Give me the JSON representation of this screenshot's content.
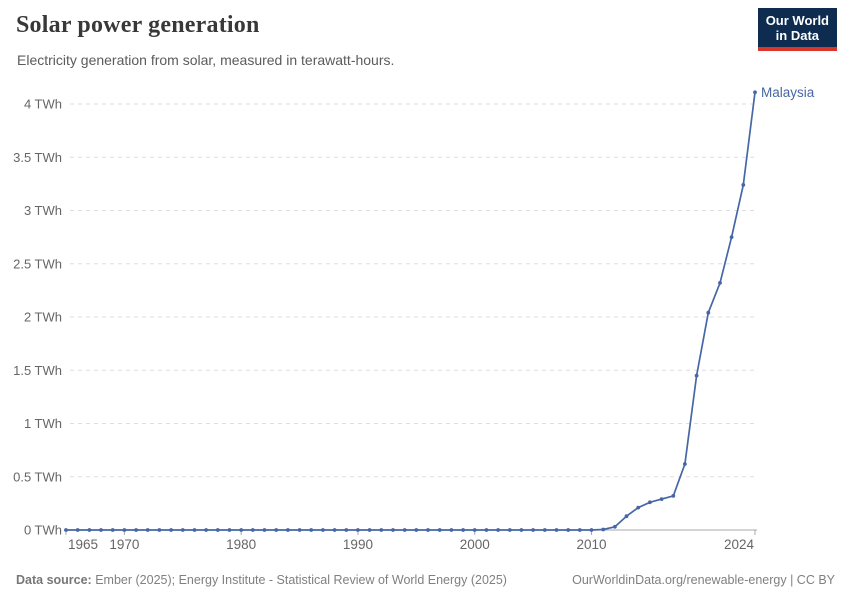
{
  "header": {
    "title": "Solar power generation",
    "subtitle": "Electricity generation from solar, measured in terawatt-hours.",
    "logo": {
      "line1": "Our World",
      "line2": "in Data"
    }
  },
  "footer": {
    "source_label": "Data source:",
    "source_text": "Ember (2025); Energy Institute - Statistical Review of World Energy (2025)",
    "url_text": "OurWorldinData.org/renewable-energy",
    "license_text": " | CC BY"
  },
  "colors": {
    "line": "#4666a5",
    "entity_label": "#4666a5",
    "grid": "#dedede",
    "axis": "#a8a8a8",
    "tick_text": "#666666",
    "logo_bg": "#0d2c50",
    "logo_stripe": "#d8352b"
  },
  "chart_data": {
    "type": "line",
    "title": "Solar power generation",
    "subtitle": "Electricity generation from solar, measured in terawatt-hours.",
    "unit": "TWh",
    "xlim": [
      1965,
      2024
    ],
    "ylim": [
      0,
      4
    ],
    "grid": "horizontal-dashed",
    "legend_position": "label-at-line-end",
    "x_ticks": [
      1965,
      1970,
      1980,
      1990,
      2000,
      2010,
      2024
    ],
    "y_ticks": [
      {
        "value": 0,
        "label": "0 TWh"
      },
      {
        "value": 0.5,
        "label": "0.5 TWh"
      },
      {
        "value": 1,
        "label": "1 TWh"
      },
      {
        "value": 1.5,
        "label": "1.5 TWh"
      },
      {
        "value": 2,
        "label": "2 TWh"
      },
      {
        "value": 2.5,
        "label": "2.5 TWh"
      },
      {
        "value": 3,
        "label": "3 TWh"
      },
      {
        "value": 3.5,
        "label": "3.5 TWh"
      },
      {
        "value": 4,
        "label": "4 TWh"
      }
    ],
    "series": [
      {
        "name": "Malaysia",
        "color": "#4666a5",
        "points": [
          [
            1965,
            0
          ],
          [
            1966,
            0
          ],
          [
            1967,
            0
          ],
          [
            1968,
            0
          ],
          [
            1969,
            0
          ],
          [
            1970,
            0
          ],
          [
            1971,
            0
          ],
          [
            1972,
            0
          ],
          [
            1973,
            0
          ],
          [
            1974,
            0
          ],
          [
            1975,
            0
          ],
          [
            1976,
            0
          ],
          [
            1977,
            0
          ],
          [
            1978,
            0
          ],
          [
            1979,
            0
          ],
          [
            1980,
            0
          ],
          [
            1981,
            0
          ],
          [
            1982,
            0
          ],
          [
            1983,
            0
          ],
          [
            1984,
            0
          ],
          [
            1985,
            0
          ],
          [
            1986,
            0
          ],
          [
            1987,
            0
          ],
          [
            1988,
            0
          ],
          [
            1989,
            0
          ],
          [
            1990,
            0
          ],
          [
            1991,
            0
          ],
          [
            1992,
            0
          ],
          [
            1993,
            0
          ],
          [
            1994,
            0
          ],
          [
            1995,
            0
          ],
          [
            1996,
            0
          ],
          [
            1997,
            0
          ],
          [
            1998,
            0
          ],
          [
            1999,
            0
          ],
          [
            2000,
            0
          ],
          [
            2001,
            0
          ],
          [
            2002,
            0
          ],
          [
            2003,
            0
          ],
          [
            2004,
            0
          ],
          [
            2005,
            0
          ],
          [
            2006,
            0
          ],
          [
            2007,
            0
          ],
          [
            2008,
            0
          ],
          [
            2009,
            0
          ],
          [
            2010,
            0
          ],
          [
            2011,
            0.005
          ],
          [
            2012,
            0.03
          ],
          [
            2013,
            0.13
          ],
          [
            2014,
            0.21
          ],
          [
            2015,
            0.26
          ],
          [
            2016,
            0.29
          ],
          [
            2017,
            0.32
          ],
          [
            2018,
            0.62
          ],
          [
            2019,
            1.45
          ],
          [
            2020,
            2.04
          ],
          [
            2021,
            2.32
          ],
          [
            2022,
            2.75
          ],
          [
            2023,
            3.24
          ],
          [
            2024,
            4.11
          ]
        ]
      }
    ]
  }
}
